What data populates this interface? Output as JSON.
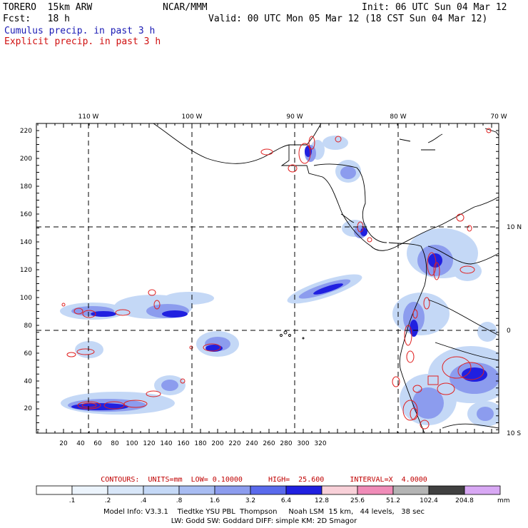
{
  "header": {
    "model": "TORERO  15km ARW",
    "org": "NCAR/MMM",
    "init": "Init: 06 UTC Sun 04 Mar 12",
    "fcst": "Fcst:   18 h",
    "valid": "Valid: 00 UTC Mon 05 Mar 12 (18 CST Sun 04 Mar 12)",
    "cumulus": "Cumulus precip. in past 3 h",
    "explicit": "Explicit precip. in past 3 h"
  },
  "colors": {
    "cumulus_text": "#1a1ab4",
    "explicit_text": "#d01010"
  },
  "map": {
    "lon_labels": [
      "110 W",
      "100 W",
      "90 W",
      "80 W",
      "70 W"
    ],
    "lat_labels": [
      "10 N",
      "0",
      "10 S"
    ],
    "x_ticks": [
      "20",
      "40",
      "60",
      "80",
      "100",
      "120",
      "140",
      "160",
      "180",
      "200",
      "220",
      "240",
      "260",
      "280",
      "300",
      "320"
    ],
    "y_ticks": [
      "20",
      "40",
      "60",
      "80",
      "100",
      "120",
      "140",
      "160",
      "180",
      "200",
      "220"
    ]
  },
  "contours": {
    "text": "CONTOURS:  UNITS=mm  LOW= 0.10000      HIGH=  25.600      INTERVAL=X  4.0000"
  },
  "colorbar": {
    "labels": [
      ".1",
      ".2",
      ".4",
      ".8",
      "1.6",
      "3.2",
      "6.4",
      "12.8",
      "25.6",
      "51.2",
      "102.4",
      "204.8"
    ],
    "unit": "mm",
    "colors": [
      "#ffffff",
      "#ecf4fc",
      "#d8e6f8",
      "#c4d8f6",
      "#a8bcf2",
      "#8c9cee",
      "#5a6aec",
      "#2020e0",
      "#f8d0d8",
      "#f08cb8",
      "#b4b4b4",
      "#404040",
      "#d8a8f4"
    ]
  },
  "footer": {
    "line1": "Model Info: V3.3.1    Tiedtke YSU PBL  Thompson     Noah LSM  15 km,   44 levels,   38 sec",
    "line2": "LW: Godd SW: Goddard DIFF: simple KM: 2D Smagor"
  }
}
